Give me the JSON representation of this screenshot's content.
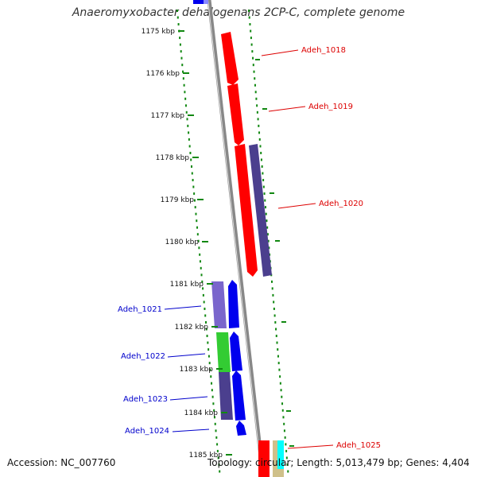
{
  "title": "Anaeromyxobacter dehalogenans 2CP-C, complete genome",
  "footer": {
    "accession": "Accession: NC_007760",
    "summary": "Topology: circular; Length: 5,013,479 bp; Genes: 4,404"
  },
  "ticks": [
    "1175 kbp",
    "1176 kbp",
    "1177 kbp",
    "1178 kbp",
    "1179 kbp",
    "1180 kbp",
    "1181 kbp",
    "1182 kbp",
    "1183 kbp",
    "1184 kbp",
    "1185 kbp"
  ],
  "genes_forward": [
    "Adeh_1018",
    "Adeh_1019",
    "Adeh_1020",
    "Adeh_1025"
  ],
  "genes_reverse": [
    "Adeh_1021",
    "Adeh_1022",
    "Adeh_1023",
    "Adeh_1024"
  ],
  "colors": {
    "forward_label": "#dd0000",
    "reverse_label": "#0000cc",
    "cds_red": "#ff0000",
    "cds_blue": "#0000ee",
    "cog_slate": "#4b3f8e",
    "cog_violet": "#7a66cc",
    "cog_green": "#33cc33",
    "cog_cyan": "#00ffff",
    "cog_tan": "#cfc08a",
    "backbone": "#888888",
    "gc_dots": "#118811"
  }
}
